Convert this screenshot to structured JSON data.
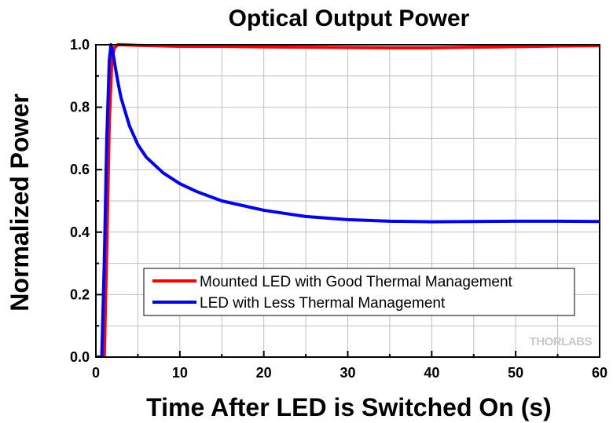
{
  "chart_data": {
    "type": "line",
    "title": "Optical Output Power",
    "xlabel": "Time After LED is Switched On (s)",
    "ylabel": "Normalized Power",
    "xlim": [
      0,
      60
    ],
    "ylim": [
      0.0,
      1.0
    ],
    "x_ticks": [
      "0",
      "10",
      "20",
      "30",
      "40",
      "50",
      "60"
    ],
    "y_ticks": [
      "0.0",
      "0.2",
      "0.4",
      "0.6",
      "0.8",
      "1.0"
    ],
    "grid": true,
    "legend_position": "lower-center",
    "series": [
      {
        "name": "Mounted LED with Good Thermal Management",
        "color": "#ff0000",
        "x": [
          0,
          1.0,
          1.3,
          1.6,
          1.9,
          2.2,
          2.6,
          3,
          5,
          10,
          15,
          20,
          25,
          30,
          35,
          40,
          45,
          50,
          55,
          60
        ],
        "y": [
          0.0,
          0.0,
          0.35,
          0.75,
          0.95,
          0.99,
          1.0,
          1.0,
          0.998,
          0.995,
          0.995,
          0.993,
          0.992,
          0.991,
          0.99,
          0.99,
          0.992,
          0.994,
          0.996,
          0.997
        ]
      },
      {
        "name": "LED with Less Thermal Management",
        "color": "#0000ff",
        "x": [
          0,
          0.7,
          1.0,
          1.3,
          1.6,
          1.8,
          2.0,
          2.3,
          2.7,
          3,
          4,
          5,
          6,
          8,
          10,
          12,
          15,
          20,
          25,
          30,
          35,
          40,
          45,
          50,
          55,
          60
        ],
        "y": [
          0.0,
          0.0,
          0.3,
          0.7,
          0.95,
          1.0,
          0.98,
          0.93,
          0.87,
          0.83,
          0.74,
          0.68,
          0.64,
          0.59,
          0.555,
          0.53,
          0.5,
          0.47,
          0.45,
          0.44,
          0.435,
          0.433,
          0.434,
          0.435,
          0.435,
          0.434
        ]
      }
    ],
    "watermark": "THORLABS"
  }
}
